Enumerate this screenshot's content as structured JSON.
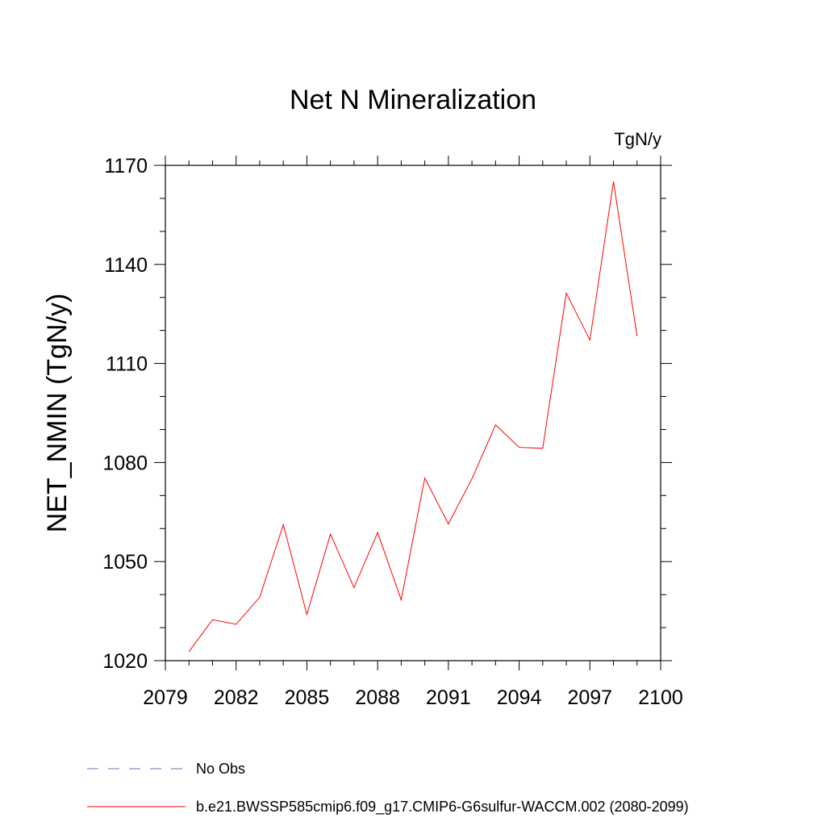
{
  "chart_data": {
    "type": "line",
    "title": "Net N Mineralization",
    "units_label": "TgN/y",
    "ylabel": "NET_NMIN  (TgN/y)",
    "xlabel": "",
    "xlim": [
      2079,
      2100
    ],
    "ylim": [
      1020,
      1170
    ],
    "x_ticks": [
      2079,
      2082,
      2085,
      2088,
      2091,
      2094,
      2097,
      2100
    ],
    "x_minor_step": 1,
    "y_ticks": [
      1020,
      1050,
      1080,
      1110,
      1140,
      1170
    ],
    "y_minor_step": 10,
    "series": [
      {
        "name": "b.e21.BWSSP585cmip6.f09_g17.CMIP6-G6sulfur-WACCM.002 (2080-2099)",
        "color": "#ff0000",
        "style": "solid",
        "x": [
          2080,
          2081,
          2082,
          2083,
          2084,
          2085,
          2086,
          2087,
          2088,
          2089,
          2090,
          2091,
          2092,
          2093,
          2094,
          2095,
          2096,
          2097,
          2098,
          2099
        ],
        "values": [
          1022.7,
          1032.4,
          1031.0,
          1039.2,
          1061.2,
          1034.0,
          1058.3,
          1042.1,
          1058.8,
          1038.4,
          1075.3,
          1061.4,
          1075.1,
          1091.4,
          1084.6,
          1084.3,
          1131.3,
          1117.1,
          1165.1,
          1118.3
        ]
      }
    ],
    "legend": [
      {
        "label": "No Obs",
        "color": "#7b68b5",
        "style": "dashed"
      },
      {
        "label": "b.e21.BWSSP585cmip6.f09_g17.CMIP6-G6sulfur-WACCM.002 (2080-2099)",
        "color": "#ff0000",
        "style": "solid"
      }
    ]
  }
}
